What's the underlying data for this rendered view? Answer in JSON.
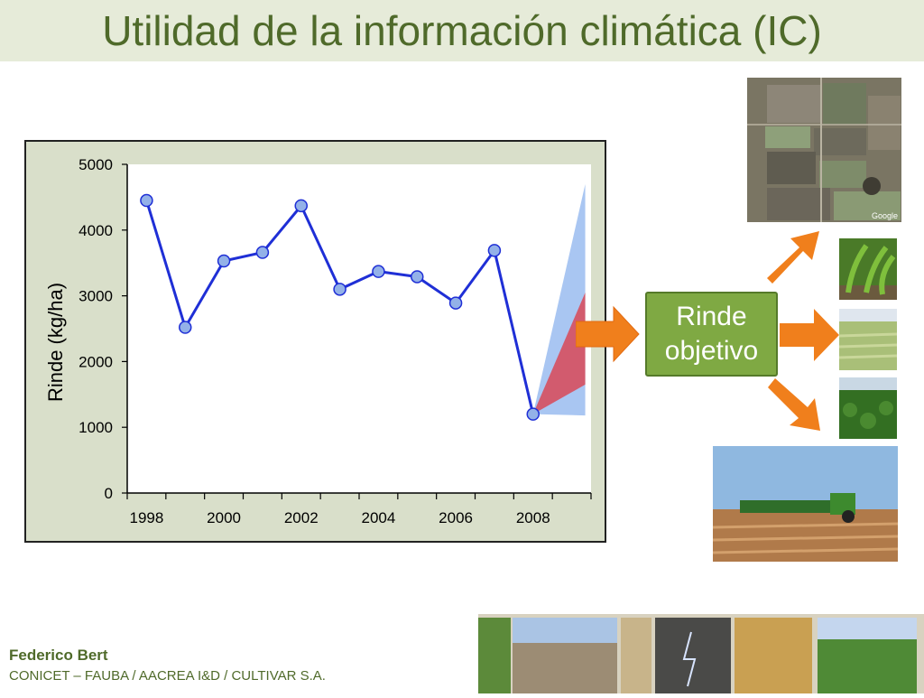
{
  "slide": {
    "title": "Utilidad de la información climática (IC)"
  },
  "chart_data": {
    "type": "line",
    "title": "",
    "xlabel": "",
    "ylabel": "Rinde (kg/ha)",
    "xlim": [
      1997.5,
      2009.5
    ],
    "ylim": [
      0,
      5000
    ],
    "x_ticks": [
      1998,
      2000,
      2002,
      2004,
      2006,
      2008
    ],
    "y_ticks": [
      0,
      1000,
      2000,
      3000,
      4000,
      5000
    ],
    "grid": false,
    "legend": "none",
    "series": [
      {
        "x": [
          1998,
          1999,
          2000,
          2001,
          2002,
          2003,
          2004,
          2005,
          2006,
          2007,
          2008
        ],
        "y": [
          4450,
          2520,
          3530,
          3660,
          4370,
          3100,
          3370,
          3290,
          2890,
          3690,
          1200
        ],
        "color": "#1f2fd6",
        "marker_color": "#93b1e8"
      }
    ],
    "forecast": {
      "start": [
        2008,
        1200
      ],
      "x_end": 2009.35,
      "outer_band": [
        1180,
        4700
      ],
      "inner_band": [
        1650,
        3050
      ],
      "outer_color": "#a9c6f2",
      "inner_color": "#d25b6e"
    }
  },
  "target": {
    "line1": "Rinde",
    "line2": "objetivo"
  },
  "footer": {
    "name": "Federico Bert",
    "org": "CONICET – FAUBA / AACREA I&D / CULTIVAR S.A."
  },
  "photos": {
    "aerial_watermark": "Google"
  },
  "colors": {
    "accent_green": "#4f6a2a",
    "arrow_orange": "#f07f1c"
  }
}
